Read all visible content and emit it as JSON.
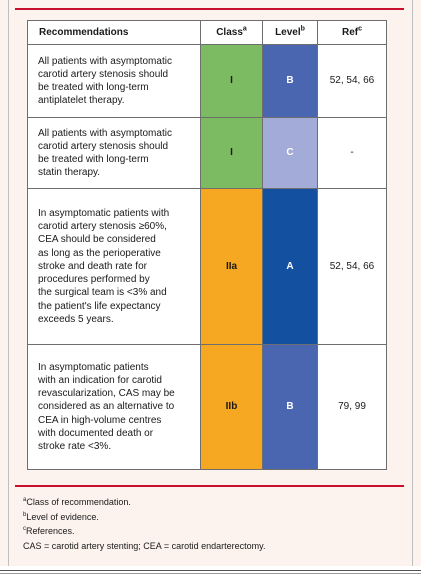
{
  "table": {
    "headers": {
      "recommendations": "Recommendations",
      "class": "Class",
      "class_sup": "a",
      "level": "Level",
      "level_sup": "b",
      "ref": "Ref",
      "ref_sup": "c"
    },
    "rows": [
      {
        "lines": [
          "All patients with asymptomatic",
          "carotid artery stenosis should",
          "be treated with long-term",
          "antiplatelet therapy."
        ],
        "class": "I",
        "level": "B",
        "ref": "52, 54, 66",
        "class_color": "#7dbb62",
        "level_color": "#4a66b0"
      },
      {
        "lines": [
          "All patients with asymptomatic",
          "carotid artery stenosis should",
          "be treated with long-term",
          "statin therapy."
        ],
        "class": "I",
        "level": "C",
        "ref": "-",
        "class_color": "#7dbb62",
        "level_color": "#a3abd8"
      },
      {
        "lines": [
          "In asymptomatic patients with",
          "carotid artery stenosis ≥60%,",
          "CEA should be considered",
          "as long as the perioperative",
          "stroke and death rate for",
          "procedures performed by",
          "the surgical team is <3% and",
          "the patient's life expectancy",
          "exceeds 5 years."
        ],
        "class": "IIa",
        "level": "A",
        "ref": "52, 54, 66",
        "class_color": "#f7a823",
        "level_color": "#1450a0"
      },
      {
        "lines": [
          "In asymptomatic patients",
          "with an indication for carotid",
          "revascularization, CAS may be",
          "considered as an alternative to",
          "CEA in high-volume centres",
          "with documented death or",
          "stroke rate <3%."
        ],
        "class": "IIb",
        "level": "B",
        "ref": "79, 99",
        "class_color": "#f7a823",
        "level_color": "#4a66b0"
      }
    ]
  },
  "footnotes": [
    {
      "sup": "a",
      "text": "Class of recommendation."
    },
    {
      "sup": "b",
      "text": "Level of evidence."
    },
    {
      "sup": "c",
      "text": "References."
    },
    {
      "sup": "",
      "text": "CAS = carotid artery stenting; CEA = carotid endarterectomy."
    }
  ]
}
